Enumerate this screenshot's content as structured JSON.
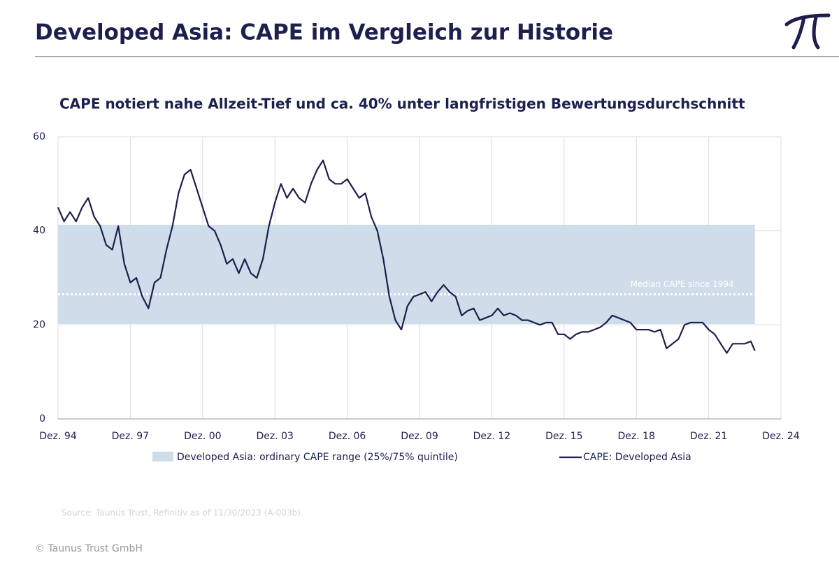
{
  "header": {
    "title": "Developed Asia: CAPE im Vergleich zur Historie"
  },
  "chart_data": {
    "type": "line",
    "title": "CAPE notiert nahe Allzeit-Tief und ca. 40% unter langfristigen Bewertungsdurchschnitt",
    "x": [
      "1994-12",
      "1995-03",
      "1995-06",
      "1995-09",
      "1995-12",
      "1996-03",
      "1996-06",
      "1996-09",
      "1996-12",
      "1997-03",
      "1997-06",
      "1997-09",
      "1997-12",
      "1998-03",
      "1998-06",
      "1998-09",
      "1998-12",
      "1999-03",
      "1999-06",
      "1999-09",
      "1999-12",
      "2000-03",
      "2000-06",
      "2000-09",
      "2000-12",
      "2001-03",
      "2001-06",
      "2001-09",
      "2001-12",
      "2002-03",
      "2002-06",
      "2002-09",
      "2002-12",
      "2003-03",
      "2003-06",
      "2003-09",
      "2003-12",
      "2004-03",
      "2004-06",
      "2004-09",
      "2004-12",
      "2005-03",
      "2005-06",
      "2005-09",
      "2005-12",
      "2006-03",
      "2006-06",
      "2006-09",
      "2006-12",
      "2007-03",
      "2007-06",
      "2007-09",
      "2007-12",
      "2008-03",
      "2008-06",
      "2008-09",
      "2008-12",
      "2009-03",
      "2009-06",
      "2009-09",
      "2009-12",
      "2010-03",
      "2010-06",
      "2010-09",
      "2010-12",
      "2011-03",
      "2011-06",
      "2011-09",
      "2011-12",
      "2012-03",
      "2012-06",
      "2012-09",
      "2012-12",
      "2013-03",
      "2013-06",
      "2013-09",
      "2013-12",
      "2014-03",
      "2014-06",
      "2014-09",
      "2014-12",
      "2015-03",
      "2015-06",
      "2015-09",
      "2015-12",
      "2016-03",
      "2016-06",
      "2016-09",
      "2016-12",
      "2017-03",
      "2017-06",
      "2017-09",
      "2017-12",
      "2018-03",
      "2018-06",
      "2018-09",
      "2018-12",
      "2019-03",
      "2019-06",
      "2019-09",
      "2019-12",
      "2020-03",
      "2020-06",
      "2020-09",
      "2020-12",
      "2021-03",
      "2021-06",
      "2021-09",
      "2021-12",
      "2022-03",
      "2022-06",
      "2022-09",
      "2022-12",
      "2023-03",
      "2023-06",
      "2023-09",
      "2023-11"
    ],
    "series": [
      {
        "name": "CAPE: Developed Asia",
        "color": "#1d1f4e",
        "values": [
          45,
          42,
          44,
          42,
          45,
          47,
          43,
          41,
          37,
          36,
          41,
          33,
          29,
          30,
          26,
          23.5,
          29,
          30,
          36,
          41,
          48,
          52,
          53,
          49,
          45,
          41,
          40,
          37,
          33,
          34,
          31,
          34,
          31,
          30,
          34,
          41,
          46,
          50,
          47,
          49,
          47,
          46,
          50,
          53,
          55,
          51,
          50,
          50,
          51,
          49,
          47,
          48,
          43,
          40,
          34,
          26,
          21,
          19,
          24,
          26,
          26.5,
          27,
          25,
          27,
          28.5,
          27,
          26,
          22,
          23,
          23.5,
          21,
          21.5,
          22,
          23.5,
          22,
          22.5,
          22,
          21,
          21,
          20.5,
          20,
          20.5,
          20.5,
          18,
          18,
          17,
          18,
          18.5,
          18.5,
          19,
          19.5,
          20.5,
          22,
          21.5,
          21,
          20.5,
          19,
          19,
          19,
          18.5,
          19,
          15,
          16,
          17,
          20,
          20.5,
          20.5,
          20.5,
          19,
          18,
          16,
          14,
          16,
          16,
          16,
          16.5,
          14.5
        ]
      }
    ],
    "range": {
      "name": "Developed Asia: ordinary CAPE range (25%/75% quintile)",
      "color": "#cfdcea",
      "low": 20.2,
      "high": 41.3
    },
    "median": {
      "value": 26.5,
      "label": "Median CAPE since 1994"
    },
    "xlim": [
      "1994-12",
      "2024-12"
    ],
    "xticks": [
      {
        "value": "1994-12",
        "label": "Dez. 94"
      },
      {
        "value": "1997-12",
        "label": "Dez. 97"
      },
      {
        "value": "2000-12",
        "label": "Dez. 00"
      },
      {
        "value": "2003-12",
        "label": "Dez. 03"
      },
      {
        "value": "2006-12",
        "label": "Dez. 06"
      },
      {
        "value": "2009-12",
        "label": "Dez. 09"
      },
      {
        "value": "2012-12",
        "label": "Dez. 12"
      },
      {
        "value": "2015-12",
        "label": "Dez. 15"
      },
      {
        "value": "2018-12",
        "label": "Dez. 18"
      },
      {
        "value": "2021-12",
        "label": "Dez. 21"
      },
      {
        "value": "2024-12",
        "label": "Dez. 24"
      }
    ],
    "ylim": [
      0,
      60
    ],
    "yticks": [
      0,
      20,
      40,
      60
    ],
    "grid": true
  },
  "footer": {
    "source": "Source: Taunus Trust, Refinitiv as of 11/30/2023 (A-003b).",
    "copyright": "© Taunus Trust GmbH"
  }
}
